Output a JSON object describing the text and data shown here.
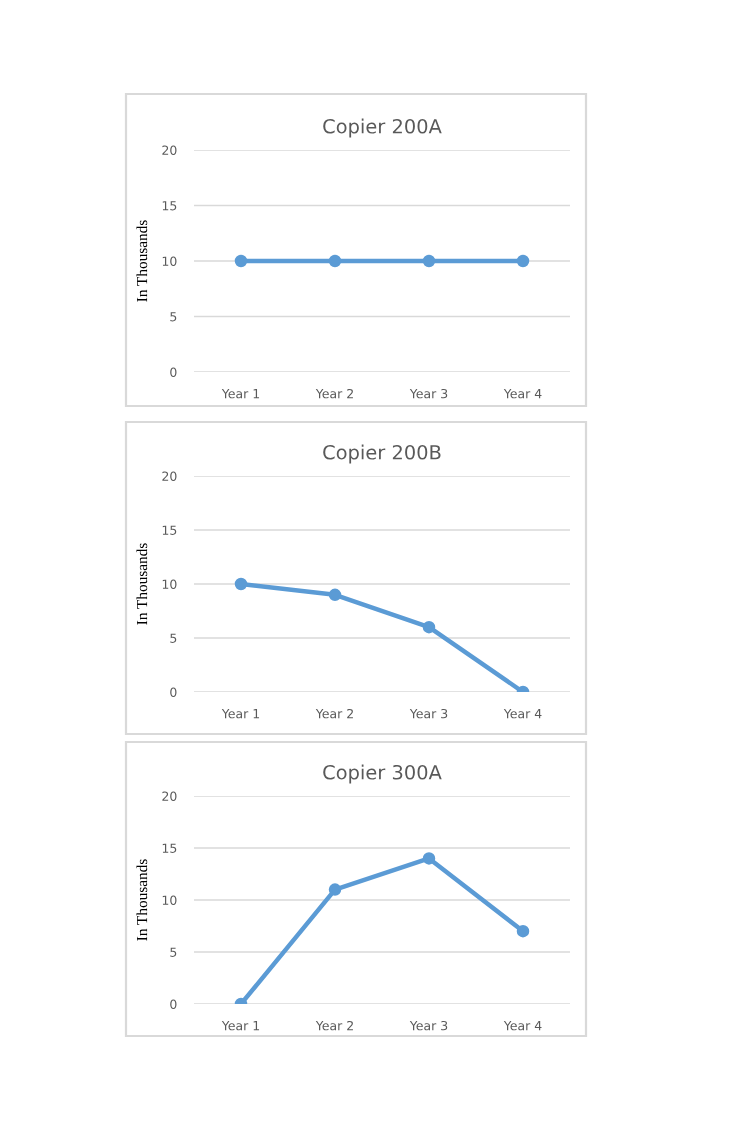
{
  "chart_data": [
    {
      "type": "line",
      "title": "Copier 200A",
      "ylabel": "In Thousands",
      "categories": [
        "Year 1",
        "Year 2",
        "Year 3",
        "Year 4"
      ],
      "series": [
        {
          "color": "#5b9bd5",
          "values": [
            10,
            10,
            10,
            10
          ]
        }
      ],
      "ylim": [
        0,
        20
      ],
      "yticks": [
        0,
        5,
        10,
        15,
        20
      ],
      "grid": "y",
      "marker": "circle",
      "line_style": "solid",
      "legend": false
    },
    {
      "type": "line",
      "title": "Copier 200B",
      "ylabel": "In Thousands",
      "categories": [
        "Year 1",
        "Year 2",
        "Year 3",
        "Year 4"
      ],
      "series": [
        {
          "color": "#5b9bd5",
          "values": [
            10,
            9,
            6,
            0
          ]
        }
      ],
      "ylim": [
        0,
        20
      ],
      "yticks": [
        0,
        5,
        10,
        15,
        20
      ],
      "grid": "y",
      "marker": "circle",
      "line_style": "solid",
      "legend": false
    },
    {
      "type": "line",
      "title": "Copier 300A",
      "ylabel": "In Thousands",
      "categories": [
        "Year 1",
        "Year 2",
        "Year 3",
        "Year 4"
      ],
      "series": [
        {
          "color": "#5b9bd5",
          "values": [
            0,
            11,
            14,
            7
          ]
        }
      ],
      "ylim": [
        0,
        20
      ],
      "yticks": [
        0,
        5,
        10,
        15,
        20
      ],
      "grid": "y",
      "marker": "circle",
      "line_style": "solid",
      "legend": false
    }
  ]
}
